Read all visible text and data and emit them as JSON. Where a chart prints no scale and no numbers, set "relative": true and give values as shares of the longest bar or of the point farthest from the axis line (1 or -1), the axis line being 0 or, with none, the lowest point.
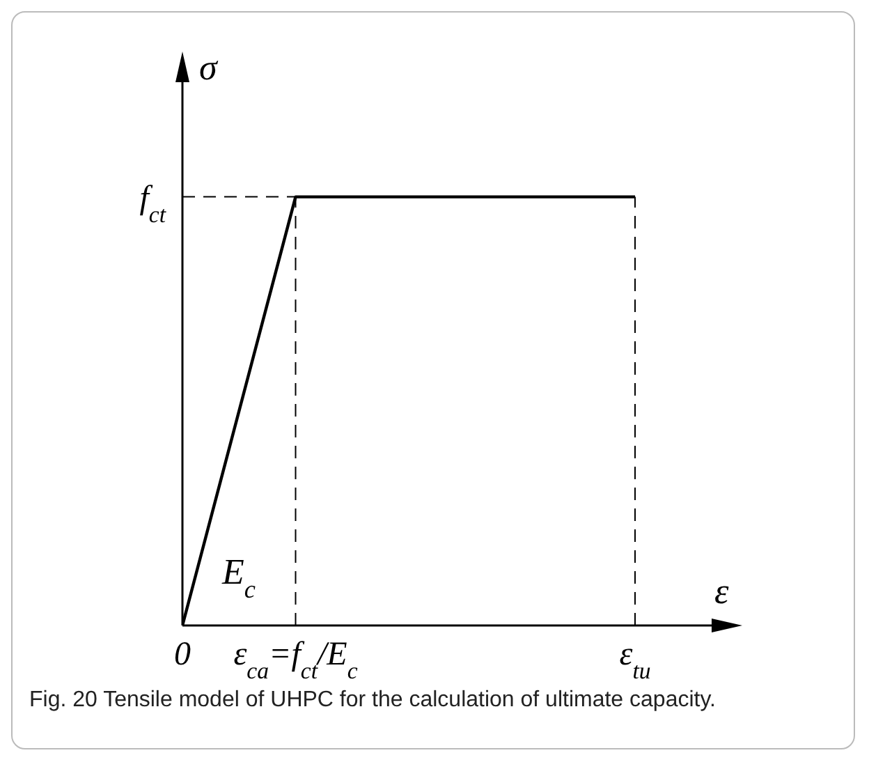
{
  "chart_data": {
    "type": "line",
    "xlabel": "ε",
    "ylabel": "σ",
    "relative": true,
    "categories": [
      "0",
      "ε$_{ca}$=f$_{ct}$/E$_{c}$",
      null,
      null,
      "ε$_{tu}$"
    ],
    "series": [
      {
        "color": "#000000",
        "values": [
          0,
          1,
          1,
          1,
          1
        ]
      }
    ],
    "ref_lines": [
      {
        "axis": "y",
        "value": 1,
        "label": "f$_{ct}$",
        "line_style": "dashed"
      },
      {
        "axis": "x",
        "value": "ε$_{ca}$=f$_{ct}$/E$_{c}$",
        "line_style": "dashed"
      },
      {
        "axis": "x",
        "value": "ε$_{tu}$",
        "line_style": "dashed"
      }
    ],
    "annotations": [
      "E$_{c}$",
      "Fig. 20 Tensile model of UHPC for the calculation of ultimate capacity."
    ]
  }
}
